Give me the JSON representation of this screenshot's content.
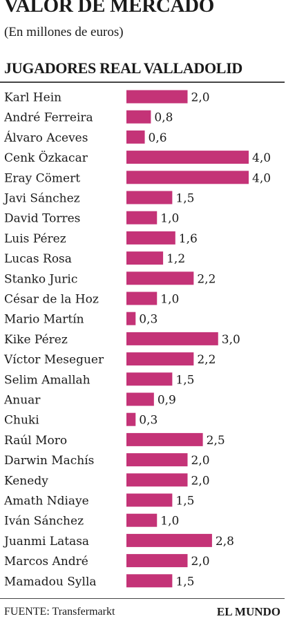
{
  "header": {
    "title": "VALOR DE MERCADO",
    "subtitle": "(En millones de euros)",
    "section": "JUGADORES REAL VALLADOLID"
  },
  "footer": {
    "source": "FUENTE: Transfermarkt",
    "brand": "EL MUNDO"
  },
  "colors": {
    "bar": "#c43377",
    "text": "#1a1a1a"
  },
  "chart_data": {
    "type": "bar",
    "orientation": "horizontal",
    "xlim": [
      0,
      4.0
    ],
    "categories": [
      "Karl Hein",
      "André Ferreira",
      "Álvaro Aceves",
      "Cenk Özkacar",
      "Eray Cömert",
      "Javi Sánchez",
      "David Torres",
      "Luis Pérez",
      "Lucas Rosa",
      "Stanko Juric",
      "César de la Hoz",
      "Mario Martín",
      "Kike Pérez",
      "Víctor Meseguer",
      "Selim Amallah",
      "Anuar",
      "Chuki",
      "Raúl Moro",
      "Darwin Machís",
      "Kenedy",
      "Amath Ndiaye",
      "Iván Sánchez",
      "Juanmi Latasa",
      "Marcos André",
      "Mamadou Sylla"
    ],
    "values": [
      2.0,
      0.8,
      0.6,
      4.0,
      4.0,
      1.5,
      1.0,
      1.6,
      1.2,
      2.2,
      1.0,
      0.3,
      3.0,
      2.2,
      1.5,
      0.9,
      0.3,
      2.5,
      2.0,
      2.0,
      1.5,
      1.0,
      2.8,
      2.0,
      1.5
    ],
    "value_labels": [
      "2,0",
      "0,8",
      "0,6",
      "4,0",
      "4,0",
      "1,5",
      "1,0",
      "1,6",
      "1,2",
      "2,2",
      "1,0",
      "0,3",
      "3,0",
      "2,2",
      "1,5",
      "0,9",
      "0,3",
      "2,5",
      "2,0",
      "2,0",
      "1,5",
      "1,0",
      "2,8",
      "2,0",
      "1,5"
    ]
  }
}
